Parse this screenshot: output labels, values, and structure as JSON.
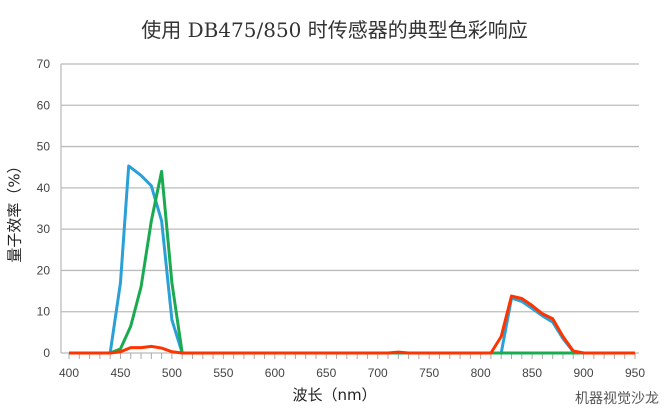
{
  "chart_data": {
    "type": "line",
    "title": "使用  DB475/850 时传感器的典型色彩响应",
    "xlabel": "波长（nm）",
    "ylabel": "量子效率（%）",
    "xlim": [
      400,
      950
    ],
    "ylim": [
      0,
      70
    ],
    "xticks": [
      400,
      450,
      500,
      550,
      600,
      650,
      700,
      750,
      800,
      850,
      900,
      950
    ],
    "yticks": [
      0,
      10,
      20,
      30,
      40,
      50,
      60,
      70
    ],
    "grid": "horizontal",
    "legend": "none",
    "series": [
      {
        "color": "#2aa0d6",
        "x": [
          400,
          440,
          450,
          458,
          470,
          480,
          490,
          500,
          510,
          820,
          830,
          840,
          850,
          860,
          870,
          880,
          890,
          900,
          950
        ],
        "y": [
          0,
          0,
          17,
          45.3,
          43,
          40.5,
          32,
          8,
          0,
          0,
          13.3,
          12.5,
          10.8,
          9,
          7.5,
          3.5,
          0.3,
          0,
          0
        ]
      },
      {
        "color": "#1aab50",
        "x": [
          400,
          440,
          450,
          460,
          470,
          480,
          490,
          500,
          510,
          950
        ],
        "y": [
          0,
          0,
          1,
          6.5,
          16,
          32,
          44,
          17,
          0,
          0
        ]
      },
      {
        "color": "#ff3300",
        "x": [
          400,
          440,
          450,
          460,
          470,
          480,
          490,
          500,
          510,
          710,
          720,
          730,
          800,
          810,
          820,
          830,
          840,
          850,
          860,
          870,
          880,
          890,
          900,
          950
        ],
        "y": [
          0,
          0,
          0.3,
          1.3,
          1.3,
          1.6,
          1.2,
          0.3,
          0,
          0,
          0.2,
          0,
          0,
          0,
          4,
          13.8,
          13.2,
          11.5,
          9.5,
          8.3,
          4,
          0.5,
          0,
          0
        ]
      }
    ]
  },
  "watermark": "机器视觉沙龙"
}
